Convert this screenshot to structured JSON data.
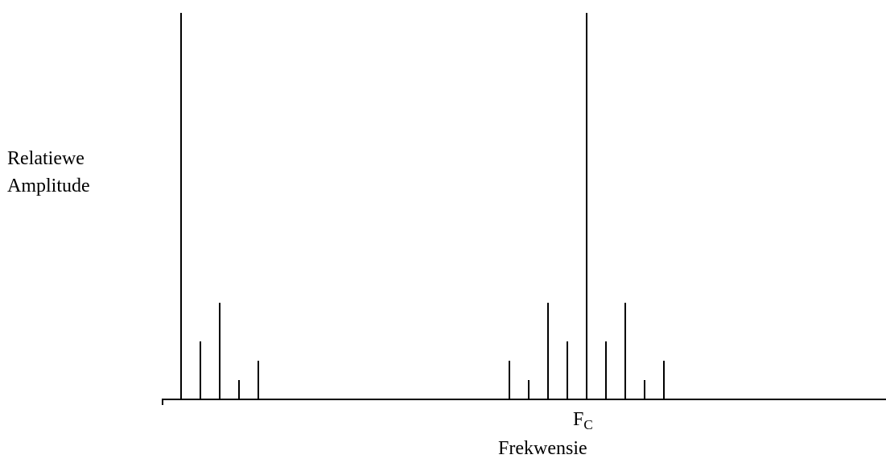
{
  "chart_data": {
    "type": "bar",
    "title": "",
    "xlabel": "Frekwensie",
    "ylabel": [
      "Relatiewe",
      "Amplitude"
    ],
    "x_tick_labels": [
      {
        "x": 0,
        "base": "F",
        "sub": "C"
      }
    ],
    "xlim": [
      -22,
      15
    ],
    "ylim": [
      0,
      20
    ],
    "grid": false,
    "legend": "none",
    "series": [
      {
        "values": [
          {
            "x": -21,
            "y": 20
          },
          {
            "x": -20,
            "y": 3
          },
          {
            "x": -19,
            "y": 5
          },
          {
            "x": -18,
            "y": 1
          },
          {
            "x": -17,
            "y": 2
          },
          {
            "x": -4,
            "y": 2
          },
          {
            "x": -3,
            "y": 1
          },
          {
            "x": -2,
            "y": 5
          },
          {
            "x": -1,
            "y": 3
          },
          {
            "x": 0,
            "y": 20
          },
          {
            "x": 1,
            "y": 3
          },
          {
            "x": 2,
            "y": 5
          },
          {
            "x": 3,
            "y": 1
          },
          {
            "x": 4,
            "y": 2
          }
        ]
      }
    ]
  }
}
